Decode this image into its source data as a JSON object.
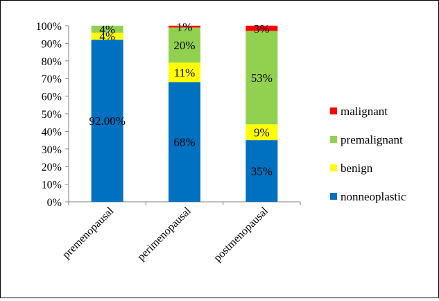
{
  "chart_data": {
    "type": "bar",
    "stacked": true,
    "categories": [
      "premenopausal",
      "perimenopausal",
      "postmenopausal"
    ],
    "series": [
      {
        "name": "nonneoplastic",
        "color": "#0070C0",
        "values": [
          92,
          68,
          35
        ],
        "labels": [
          "92.00%",
          "68%",
          "35%"
        ]
      },
      {
        "name": "benign",
        "color": "#FFFF00",
        "values": [
          4,
          11,
          9
        ],
        "labels": [
          "4%",
          "11%",
          "9%"
        ]
      },
      {
        "name": "premalignant",
        "color": "#92D050",
        "values": [
          4,
          20,
          53
        ],
        "labels": [
          "4%",
          "20%",
          "53%"
        ]
      },
      {
        "name": "malignant",
        "color": "#FF0000",
        "values": [
          0,
          1,
          3
        ],
        "labels": [
          "",
          "1%",
          "3%"
        ]
      }
    ],
    "ylim": [
      0,
      100
    ],
    "yticks": [
      "0%",
      "10%",
      "20%",
      "30%",
      "40%",
      "50%",
      "60%",
      "70%",
      "80%",
      "90%",
      "100%"
    ],
    "legend_order": [
      "malignant",
      "premalignant",
      "benign",
      "nonneoplastic"
    ],
    "legend_position": "right",
    "grid": false
  }
}
